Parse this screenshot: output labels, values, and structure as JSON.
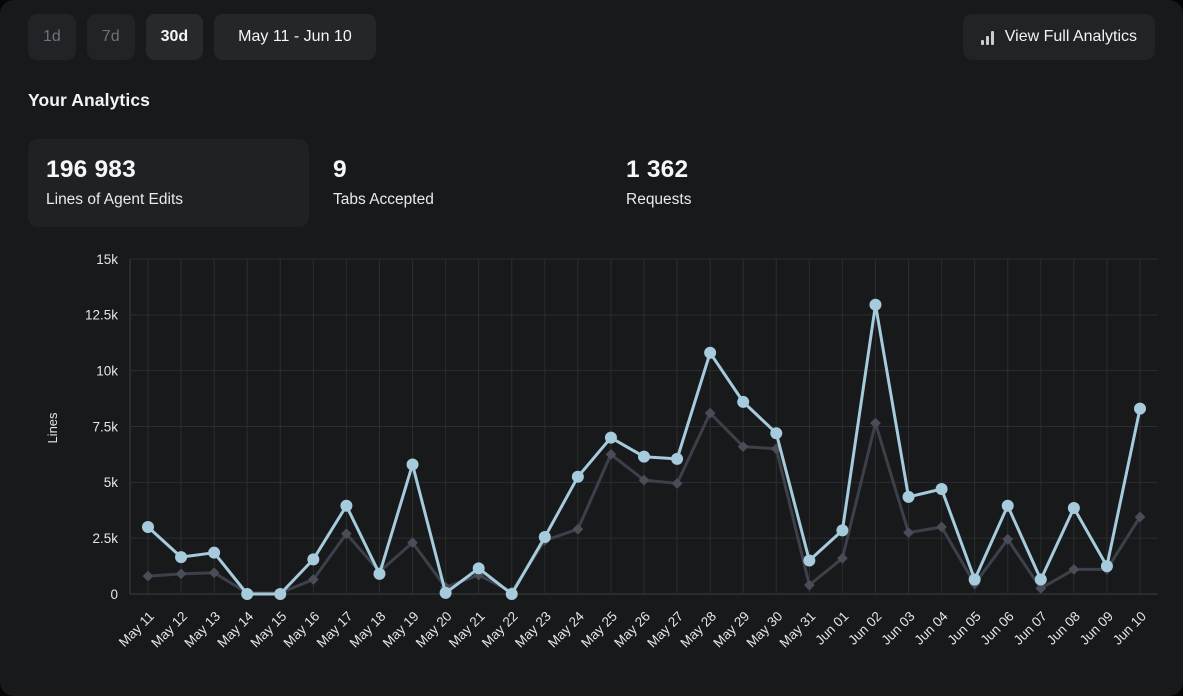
{
  "toolbar": {
    "range_buttons": [
      {
        "label": "1d",
        "active": false
      },
      {
        "label": "7d",
        "active": false
      },
      {
        "label": "30d",
        "active": true
      }
    ],
    "date_range": "May 11 - Jun 10",
    "view_full_analytics": "View Full Analytics"
  },
  "analytics": {
    "title": "Your Analytics",
    "stats": [
      {
        "value": "196 983",
        "label": "Lines of Agent Edits",
        "highlighted": true
      },
      {
        "value": "9",
        "label": "Tabs Accepted",
        "highlighted": false
      },
      {
        "value": "1 362",
        "label": "Requests",
        "highlighted": false
      }
    ]
  },
  "chart_data": {
    "type": "line",
    "title": "",
    "xlabel": "",
    "ylabel": "Lines",
    "ylim": [
      0,
      15000
    ],
    "yticks": [
      0,
      2500,
      5000,
      7500,
      10000,
      12500,
      15000
    ],
    "ytick_labels": [
      "0",
      "2.5k",
      "5k",
      "7.5k",
      "10k",
      "12.5k",
      "15k"
    ],
    "grid": true,
    "legend": "none",
    "x_tick_rotation": -45,
    "categories": [
      "May 11",
      "May 12",
      "May 13",
      "May 14",
      "May 15",
      "May 16",
      "May 17",
      "May 18",
      "May 19",
      "May 20",
      "May 21",
      "May 22",
      "May 23",
      "May 24",
      "May 25",
      "May 26",
      "May 27",
      "May 28",
      "May 29",
      "May 30",
      "May 31",
      "Jun 01",
      "Jun 02",
      "Jun 03",
      "Jun 04",
      "Jun 05",
      "Jun 06",
      "Jun 07",
      "Jun 08",
      "Jun 09",
      "Jun 10"
    ],
    "series": [
      {
        "id": "series-blue",
        "marker": "circle",
        "color": "#a5cbdd",
        "marker_color": "#a5cbdd",
        "values": [
          3000,
          1650,
          1850,
          0,
          0,
          1550,
          3950,
          900,
          5800,
          50,
          1150,
          0,
          2550,
          5250,
          7000,
          6150,
          6050,
          10800,
          8600,
          7200,
          1500,
          2850,
          12950,
          4350,
          4700,
          650,
          3950,
          650,
          3850,
          1250,
          8300
        ]
      },
      {
        "id": "series-gray",
        "marker": "diamond",
        "color": "#3d404a",
        "marker_color": "#4a4d58",
        "values": [
          800,
          900,
          950,
          50,
          50,
          650,
          2700,
          1000,
          2300,
          300,
          850,
          100,
          2400,
          2900,
          6250,
          5100,
          4950,
          8100,
          6600,
          6500,
          400,
          1600,
          7650,
          2750,
          3000,
          450,
          2450,
          250,
          1100,
          1100,
          3450
        ]
      }
    ]
  },
  "colors": {
    "background": "#18191b",
    "card": "#1f2124",
    "grid": "#2b2d30",
    "axis": "#3b3e41",
    "tick_text": "#e3e6e8",
    "accent_blue": "#a5cbdd",
    "series_gray": "#3d404a"
  }
}
